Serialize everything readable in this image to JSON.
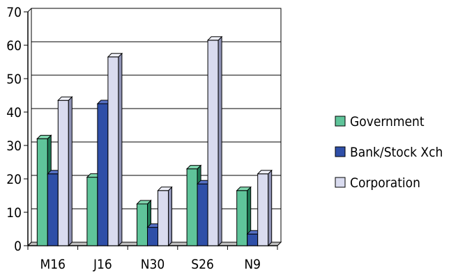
{
  "chart_data": {
    "type": "bar",
    "categories": [
      "M16",
      "J16",
      "N30",
      "S26",
      "N9"
    ],
    "series": [
      {
        "name": "Government",
        "values": [
          32,
          20.5,
          12.5,
          23,
          16.5
        ],
        "color": "#5fc49a",
        "side_color": "#1f7a55",
        "top_color": "#7fd6ae"
      },
      {
        "name": "Bank/Stock Xch",
        "values": [
          21.5,
          42.5,
          5.5,
          18.5,
          3.5
        ],
        "color": "#2f4fa8",
        "side_color": "#1a2c6b",
        "top_color": "#5670c4"
      },
      {
        "name": "Corporation",
        "values": [
          43.5,
          56.5,
          16.5,
          61.5,
          21.5
        ],
        "color": "#d9dbef",
        "side_color": "#8f93b5",
        "top_color": "#eeeff8"
      }
    ],
    "y_ticks": [
      "0",
      "10",
      "20",
      "30",
      "40",
      "50",
      "60",
      "70"
    ],
    "ylim": [
      0,
      70
    ],
    "grid": true,
    "legend_position": "right"
  }
}
